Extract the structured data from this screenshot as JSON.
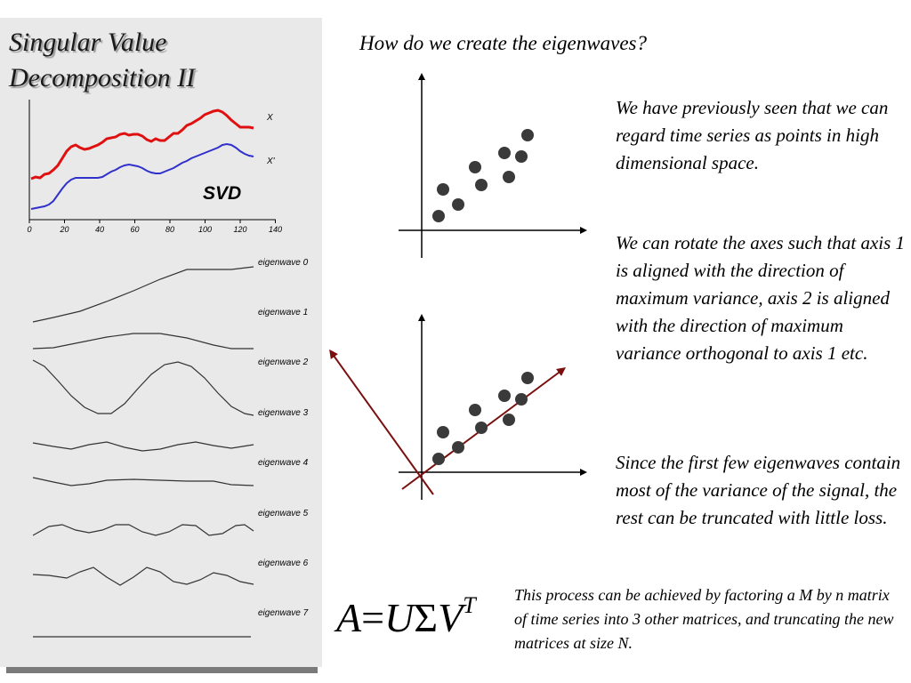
{
  "slide": {
    "title_line1": "Singular Value",
    "title_line2": "Decomposition II",
    "question": "How do we create the eigenwaves?"
  },
  "paragraphs": [
    "We have previously seen that we can regard time series as points in high dimensional space.",
    "We can rotate the axes such that axis 1 is aligned with the direction of maximum variance, axis 2 is aligned with the direction of maximum variance orthogonal to axis 1 etc.",
    "Since the first few eigenwaves contain most of the variance of the signal, the rest can be truncated with little loss."
  ],
  "formula": {
    "A": "A",
    "eq": "=",
    "U": "U",
    "Sigma": "Σ",
    "V": "V",
    "T": "T"
  },
  "caption": "This  process can be achieved by factoring a M by n matrix of time series into 3 other matrices, and truncating the new matrices at size N.",
  "svd_chart": {
    "label": "SVD",
    "x_ticks": [
      "0",
      "20",
      "40",
      "60",
      "80",
      "100",
      "120",
      "140"
    ],
    "series_labels": [
      "X",
      "X'"
    ],
    "colors": {
      "X": "#e01010",
      "X_prime": "#3030cc"
    }
  },
  "eigenwaves": [
    "eigenwave 0",
    "eigenwave 1",
    "eigenwave 2",
    "eigenwave 3",
    "eigenwave 4",
    "eigenwave 5",
    "eigenwave 6",
    "eigenwave 7"
  ],
  "colors": {
    "points": "#3a3a3a",
    "rotated_axes": "#7a0f0f",
    "axes": "#000000"
  }
}
